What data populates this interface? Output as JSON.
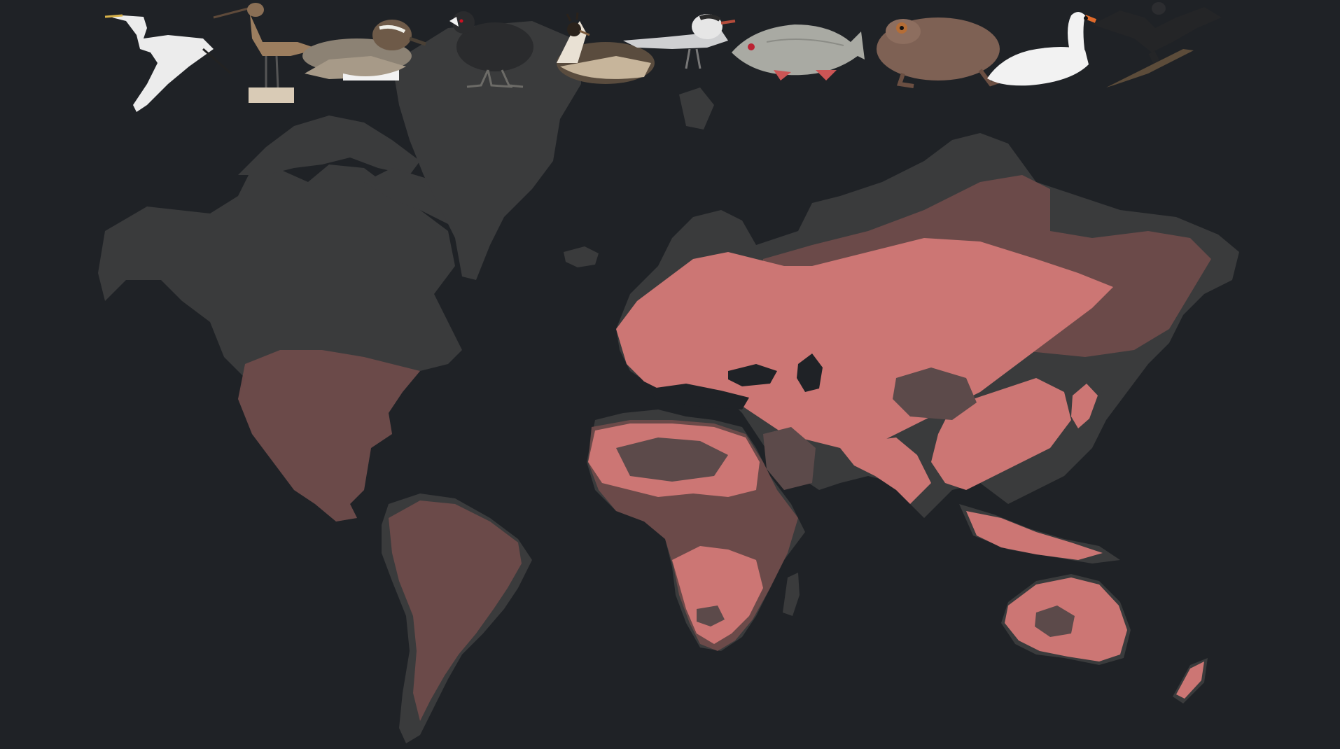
{
  "map": {
    "background": "#1f2226",
    "land_color": "#3a3b3c",
    "range_color": "#d27a78",
    "range_dark_color": "#7a5453"
  },
  "species": [
    {
      "icon": "great-egret-icon"
    },
    {
      "icon": "black-tailed-godwit-icon"
    },
    {
      "icon": "garganey-duck-icon"
    },
    {
      "icon": "eurasian-coot-icon"
    },
    {
      "icon": "great-crested-grebe-icon"
    },
    {
      "icon": "whiskered-tern-icon"
    },
    {
      "icon": "common-roach-fish-icon"
    },
    {
      "icon": "common-toad-icon"
    },
    {
      "icon": "mute-swan-icon"
    },
    {
      "icon": "great-cormorant-icon"
    }
  ]
}
